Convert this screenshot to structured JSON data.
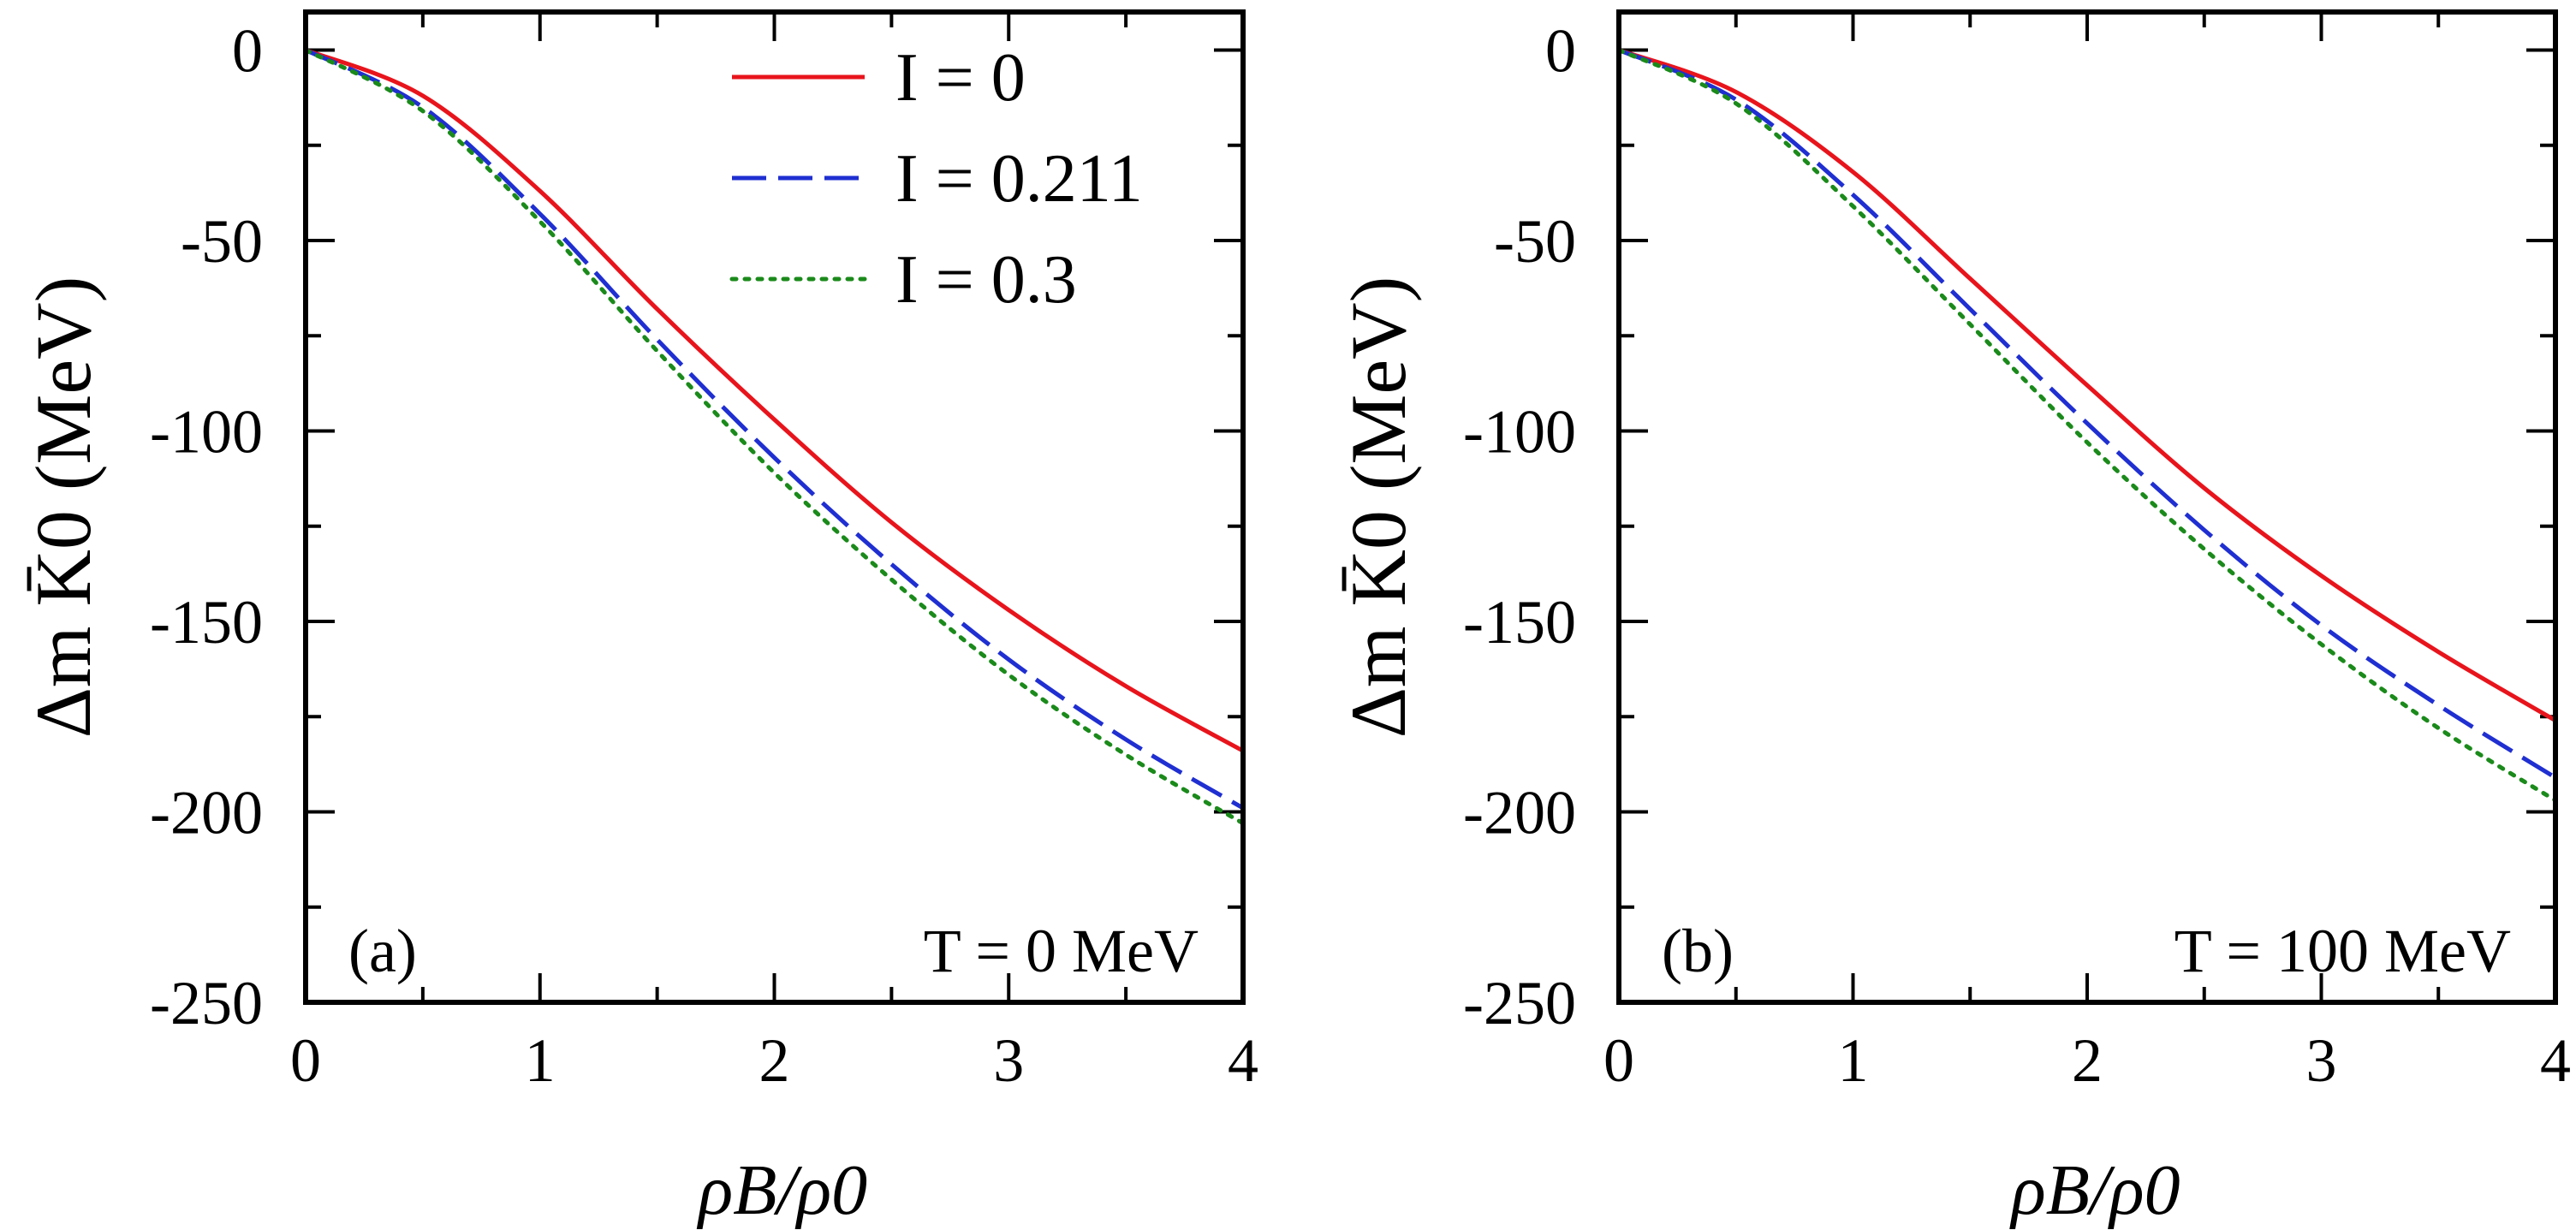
{
  "chart_data": [
    {
      "type": "line",
      "panel_label": "(a)",
      "annotation": "T = 0 MeV",
      "xlabel": "ρB/ρ0",
      "ylabel": "Δm K̄0 (MeV)",
      "xlim": [
        0,
        4
      ],
      "ylim": [
        -250,
        10
      ],
      "xticks": [
        "0",
        "1",
        "2",
        "3",
        "4"
      ],
      "yticks": [
        "0",
        "-50",
        "-100",
        "-150",
        "-200",
        "-250"
      ],
      "grid": false,
      "legend_position": "top-right",
      "x": [
        0,
        0.5,
        1,
        1.5,
        2,
        2.5,
        3,
        3.5,
        4
      ],
      "series": [
        {
          "name": "I = 0",
          "color": "#e8141c",
          "style": "solid",
          "values": [
            0,
            -12,
            -37,
            -68,
            -97,
            -124,
            -147,
            -167,
            -184
          ]
        },
        {
          "name": "I = 0.211",
          "color": "#1f2fd1",
          "style": "dashed",
          "values": [
            0,
            -15,
            -43,
            -76,
            -107,
            -135,
            -160,
            -181,
            -199
          ]
        },
        {
          "name": "I = 0.3",
          "color": "#1a8a1a",
          "style": "dotted",
          "values": [
            0,
            -16,
            -45,
            -79,
            -111,
            -139,
            -164,
            -185,
            -203
          ]
        }
      ]
    },
    {
      "type": "line",
      "panel_label": "(b)",
      "annotation": "T = 100 MeV",
      "xlabel": "ρB/ρ0",
      "ylabel": "Δm K̄0 (MeV)",
      "xlim": [
        0,
        4
      ],
      "ylim": [
        -250,
        10
      ],
      "xticks": [
        "0",
        "1",
        "2",
        "3",
        "4"
      ],
      "yticks": [
        "0",
        "-50",
        "-100",
        "-150",
        "-200",
        "-250"
      ],
      "grid": false,
      "x": [
        0,
        0.5,
        1,
        1.5,
        2,
        2.5,
        3,
        3.5,
        4
      ],
      "series": [
        {
          "name": "I = 0",
          "color": "#e8141c",
          "style": "solid",
          "values": [
            0,
            -11,
            -32,
            -60,
            -88,
            -115,
            -138,
            -158,
            -176
          ]
        },
        {
          "name": "I = 0.211",
          "color": "#1f2fd1",
          "style": "dashed",
          "values": [
            0,
            -13,
            -38,
            -68,
            -98,
            -126,
            -151,
            -172,
            -191
          ]
        },
        {
          "name": "I = 0.3",
          "color": "#1a8a1a",
          "style": "dotted",
          "values": [
            0,
            -14,
            -41,
            -72,
            -103,
            -131,
            -156,
            -178,
            -197
          ]
        }
      ]
    }
  ]
}
